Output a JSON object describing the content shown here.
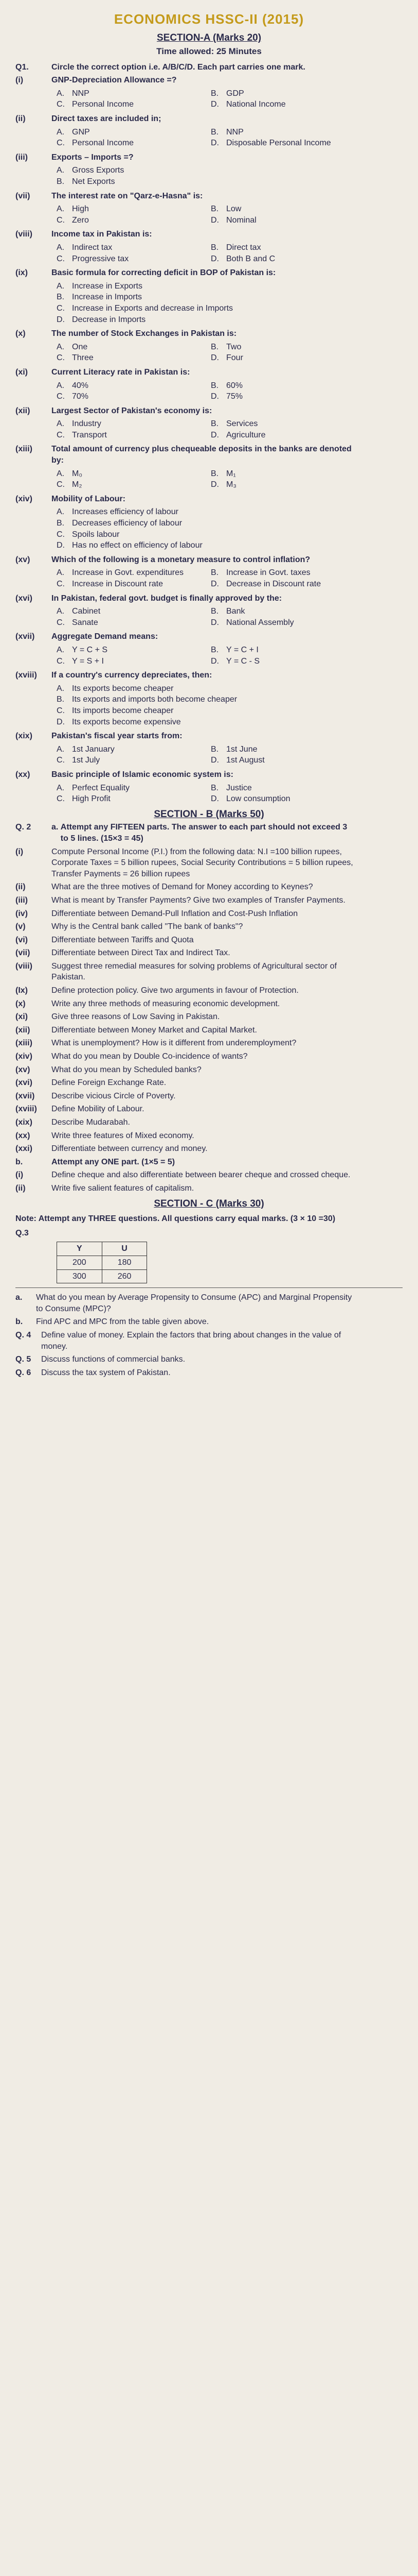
{
  "header": {
    "title": "ECONOMICS HSSC-II (2015)",
    "sectionA": "SECTION-A (Marks 20)",
    "time": "Time allowed: 25 Minutes"
  },
  "q1": {
    "num": "Q1.",
    "instr": "Circle the correct option i.e. A/B/C/D. Each part carries one mark.",
    "parts": [
      {
        "r": "(i)",
        "stem": "GNP-Depreciation Allowance =?",
        "opts": [
          [
            "A.",
            "NNP"
          ],
          [
            "B.",
            "GDP"
          ],
          [
            "C.",
            "Personal Income"
          ],
          [
            "D.",
            "National Income"
          ]
        ]
      },
      {
        "r": "(ii)",
        "stem": "Direct taxes are included in;",
        "opts": [
          [
            "A.",
            "GNP"
          ],
          [
            "B.",
            "NNP"
          ],
          [
            "C.",
            "Personal Income"
          ],
          [
            "D.",
            "Disposable Personal Income"
          ]
        ]
      },
      {
        "r": "(iii)",
        "stem": "Exports – Imports =?",
        "opts": [
          [
            "A.",
            "Gross Exports"
          ],
          [
            "B.",
            "Net Exports"
          ]
        ]
      },
      {
        "r": "(vii)",
        "stem": "The interest rate on \"Qarz-e-Hasna\" is:",
        "opts": [
          [
            "A.",
            "High"
          ],
          [
            "B.",
            "Low"
          ],
          [
            "C.",
            "Zero"
          ],
          [
            "D.",
            "Nominal"
          ]
        ]
      },
      {
        "r": "(viii)",
        "stem": "Income tax in Pakistan is:",
        "opts": [
          [
            "A.",
            "Indirect tax"
          ],
          [
            "B.",
            "Direct tax"
          ],
          [
            "C.",
            "Progressive tax"
          ],
          [
            "D.",
            "Both B and C"
          ]
        ]
      },
      {
        "r": "(ix)",
        "stem": "Basic formula for correcting deficit in BOP of Pakistan is:",
        "opts": [
          [
            "A.",
            "Increase in Exports"
          ],
          [
            "B.",
            "Increase in Imports"
          ],
          [
            "C.",
            "Increase in Exports and decrease in Imports"
          ],
          [
            "D.",
            "Decrease in Imports"
          ]
        ]
      },
      {
        "r": "(x)",
        "stem": "The number of Stock Exchanges in Pakistan is:",
        "opts": [
          [
            "A.",
            "One"
          ],
          [
            "B.",
            "Two"
          ],
          [
            "C.",
            "Three"
          ],
          [
            "D.",
            "Four"
          ]
        ]
      },
      {
        "r": "(xi)",
        "stem": "Current Literacy rate in Pakistan is:",
        "opts": [
          [
            "A.",
            "40%"
          ],
          [
            "B.",
            "60%"
          ],
          [
            "C.",
            "70%"
          ],
          [
            "D.",
            "75%"
          ]
        ]
      },
      {
        "r": "(xii)",
        "stem": "Largest Sector of Pakistan's economy is:",
        "opts": [
          [
            "A.",
            "Industry"
          ],
          [
            "B.",
            "Services"
          ],
          [
            "C.",
            "Transport"
          ],
          [
            "D.",
            "Agriculture"
          ]
        ]
      },
      {
        "r": "(xiii)",
        "stem": "Total amount of currency plus chequeable deposits in the banks are denoted by:",
        "opts": [
          [
            "A.",
            "M₀"
          ],
          [
            "B.",
            "M₁"
          ],
          [
            "C.",
            "M₂"
          ],
          [
            "D.",
            "M₃"
          ]
        ]
      },
      {
        "r": "(xiv)",
        "stem": "Mobility of Labour:",
        "opts": [
          [
            "A.",
            "Increases efficiency of labour"
          ],
          [
            "B.",
            "Decreases efficiency of labour"
          ],
          [
            "C.",
            "Spoils labour"
          ],
          [
            "D.",
            "Has no effect on efficiency of labour"
          ]
        ]
      },
      {
        "r": "(xv)",
        "stem": "Which of the following is a monetary measure to control inflation?",
        "opts": [
          [
            "A.",
            "Increase in Govt. expenditures"
          ],
          [
            "B.",
            "Increase in Govt. taxes"
          ],
          [
            "C.",
            "Increase in Discount rate"
          ],
          [
            "D.",
            "Decrease in Discount rate"
          ]
        ]
      },
      {
        "r": "(xvi)",
        "stem": "In Pakistan, federal govt. budget is finally approved by the:",
        "opts": [
          [
            "A.",
            "Cabinet"
          ],
          [
            "B.",
            "Bank"
          ],
          [
            "C.",
            "Sanate"
          ],
          [
            "D.",
            "National Assembly"
          ]
        ]
      },
      {
        "r": "(xvii)",
        "stem": "Aggregate Demand means:",
        "opts": [
          [
            "A.",
            "Y = C + S"
          ],
          [
            "B.",
            "Y = C + I"
          ],
          [
            "C.",
            "Y = S + I"
          ],
          [
            "D.",
            "Y = C - S"
          ]
        ]
      },
      {
        "r": "(xviii)",
        "stem": "If a country's currency depreciates, then:",
        "opts": [
          [
            "A.",
            "Its exports become cheaper"
          ],
          [
            "B.",
            "Its exports and imports both become cheaper"
          ],
          [
            "C.",
            "Its imports become cheaper"
          ],
          [
            "D.",
            "Its exports become expensive"
          ]
        ]
      },
      {
        "r": "(xix)",
        "stem": "Pakistan's fiscal year starts from:",
        "opts": [
          [
            "A.",
            "1st January"
          ],
          [
            "B.",
            "1st June"
          ],
          [
            "C.",
            "1st July"
          ],
          [
            "D.",
            "1st August"
          ]
        ]
      },
      {
        "r": "(xx)",
        "stem": "Basic principle of Islamic economic system is:",
        "opts": [
          [
            "A.",
            "Perfect Equality"
          ],
          [
            "B.",
            "Justice"
          ],
          [
            "C.",
            "High Profit"
          ],
          [
            "D.",
            "Low consumption"
          ]
        ]
      }
    ]
  },
  "sectionB": {
    "header": "SECTION - B (Marks 50)",
    "q2num": "Q. 2",
    "a_label": "a.",
    "a_instr": "Attempt any FIFTEEN parts. The answer to each part should not exceed 3 to 5 lines.          (15×3 = 45)",
    "parts": [
      {
        "r": "(i)",
        "t": "Compute Personal Income (P.I.) from the following data: N.I =100 billion rupees, Corporate Taxes = 5 billion rupees, Social Security Contributions = 5 billion rupees, Transfer Payments = 26 billion rupees"
      },
      {
        "r": "(ii)",
        "t": "What are the three motives of Demand for Money according to Keynes?"
      },
      {
        "r": "(iii)",
        "t": "What is meant by Transfer Payments? Give two examples of Transfer Payments."
      },
      {
        "r": "(iv)",
        "t": "Differentiate between Demand-Pull Inflation and Cost-Push Inflation"
      },
      {
        "r": "(v)",
        "t": "Why is the Central bank called \"The bank of banks\"?"
      },
      {
        "r": "(vi)",
        "t": "Differentiate between Tariffs and Quota"
      },
      {
        "r": "(vii)",
        "t": "Differentiate between Direct Tax and Indirect Tax."
      },
      {
        "r": "(viii)",
        "t": "Suggest three remedial measures for solving problems of Agricultural sector of Pakistan."
      },
      {
        "r": "(Ix)",
        "t": "Define protection policy. Give two arguments in favour of Protection."
      },
      {
        "r": "(x)",
        "t": "Write any three methods of measuring economic development."
      },
      {
        "r": "(xi)",
        "t": "Give three reasons of Low Saving in Pakistan."
      },
      {
        "r": "(xii)",
        "t": "Differentiate between Money Market and Capital Market."
      },
      {
        "r": "(xiii)",
        "t": "What is unemployment? How is it different from underemployment?"
      },
      {
        "r": "(xiv)",
        "t": "What do you mean by Double Co-incidence of wants?"
      },
      {
        "r": "(xv)",
        "t": "What do you mean by Scheduled banks?"
      },
      {
        "r": "(xvi)",
        "t": "Define Foreign Exchange Rate."
      },
      {
        "r": "(xvii)",
        "t": "Describe vicious Circle of Poverty."
      },
      {
        "r": "(xviii)",
        "t": "Define Mobility of Labour."
      },
      {
        "r": "(xix)",
        "t": "Describe Mudarabah."
      },
      {
        "r": "(xx)",
        "t": "Write three features of Mixed economy."
      },
      {
        "r": "(xxi)",
        "t": "Differentiate between currency and money."
      }
    ],
    "b_label": "b.",
    "b_instr": "Attempt any ONE part.      (1×5 = 5)",
    "bparts": [
      {
        "r": "(i)",
        "t": "Define cheque and also differentiate between bearer cheque and crossed cheque."
      },
      {
        "r": "(ii)",
        "t": "Write five salient features of capitalism."
      }
    ]
  },
  "sectionC": {
    "header": "SECTION - C (Marks 30)",
    "note": "Note: Attempt any THREE questions. All questions carry equal marks. (3 × 10 =30)",
    "q3": "Q.3",
    "table": {
      "h1": "Y",
      "h2": "U",
      "rows": [
        [
          "200",
          "180"
        ],
        [
          "300",
          "260"
        ]
      ]
    },
    "q3a": {
      "l": "a.",
      "t": "What do you mean by Average Propensity to Consume (APC) and Marginal Propensity to Consume (MPC)?"
    },
    "q3b": {
      "l": "b.",
      "t": "Find APC and MPC from the table given above."
    },
    "q4": {
      "l": "Q. 4",
      "t": "Define value of money. Explain the factors that bring about changes in the value of money."
    },
    "q5": {
      "l": "Q. 5",
      "t": "Discuss functions of commercial banks."
    },
    "q6": {
      "l": "Q. 6",
      "t": "Discuss the tax system of Pakistan."
    }
  }
}
